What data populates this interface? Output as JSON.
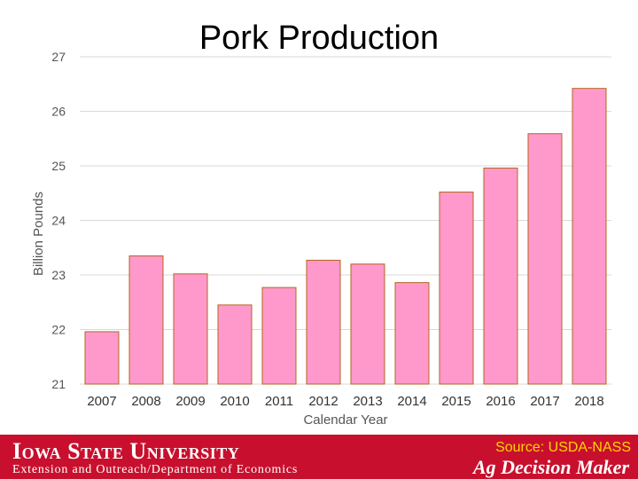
{
  "chart_data": {
    "type": "bar",
    "title": "Pork Production",
    "xlabel": "Calendar Year",
    "ylabel": "Billion Pounds",
    "ylim": [
      21,
      27
    ],
    "yticks": [
      21,
      22,
      23,
      24,
      25,
      26,
      27
    ],
    "grid": true,
    "categories": [
      "2007",
      "2008",
      "2009",
      "2010",
      "2011",
      "2012",
      "2013",
      "2014",
      "2015",
      "2016",
      "2017",
      "2018"
    ],
    "values": [
      21.96,
      23.35,
      23.02,
      22.45,
      22.77,
      23.27,
      23.2,
      22.86,
      24.52,
      24.96,
      25.59,
      26.42
    ],
    "bar_color": "#ff99cc",
    "bar_edge_color": "#b5651d"
  },
  "footer": {
    "institution": "Iowa State University",
    "department": "Extension and Outreach/Department of Economics",
    "source": "Source: USDA-NASS",
    "brand": "Ag Decision Maker",
    "background_color": "#c8102e"
  }
}
